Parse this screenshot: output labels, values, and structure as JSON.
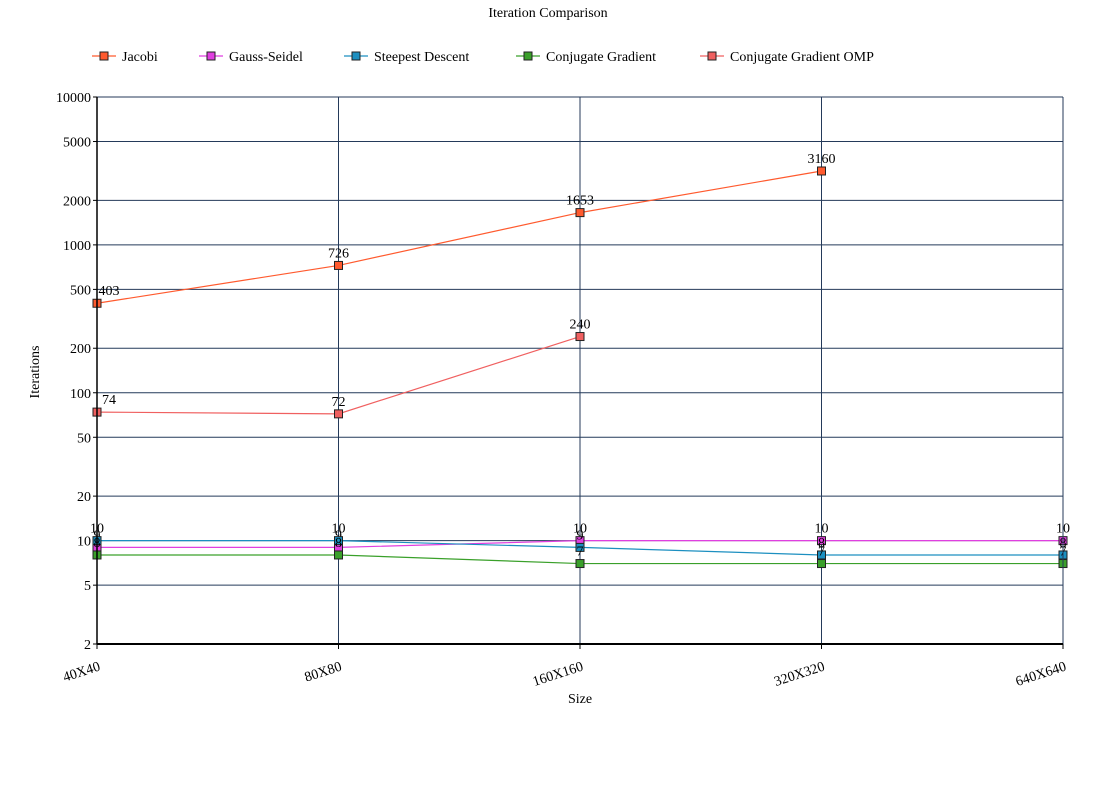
{
  "chart_data": {
    "type": "line",
    "title": "Iteration Comparison",
    "xlabel": "Size",
    "ylabel": "Iterations",
    "yscale": "log",
    "ylim": [
      2,
      10000
    ],
    "yticks": [
      2,
      5,
      10,
      20,
      50,
      100,
      200,
      500,
      1000,
      2000,
      5000,
      10000
    ],
    "categories": [
      "40X40",
      "80X80",
      "160X160",
      "320X320",
      "640X640"
    ],
    "grid": true,
    "legend_position": "top-left",
    "series": [
      {
        "name": "Jacobi",
        "color": "#ff5a2e",
        "values": [
          403,
          726,
          1653,
          3160,
          null
        ],
        "labels": [
          "403",
          "726",
          "1653",
          "3160",
          ""
        ]
      },
      {
        "name": "Gauss-Seidel",
        "color": "#e03fe0",
        "values": [
          9,
          9,
          10,
          10,
          10
        ],
        "labels": [
          "9",
          "9",
          "10",
          "10",
          "10"
        ]
      },
      {
        "name": "Steepest Descent",
        "color": "#1c8fc0",
        "values": [
          10,
          10,
          9,
          8,
          8
        ],
        "labels": [
          "10",
          "10",
          "9",
          "8",
          "8"
        ]
      },
      {
        "name": "Conjugate Gradient",
        "color": "#3aa02a",
        "values": [
          8,
          8,
          7,
          7,
          7
        ],
        "labels": [
          "8",
          "8",
          "7",
          "7",
          "7"
        ]
      },
      {
        "name": "Conjugate Gradient OMP",
        "color": "#f06060",
        "values": [
          74,
          72,
          240,
          null,
          null
        ],
        "labels": [
          "74",
          "72",
          "240",
          "",
          ""
        ]
      }
    ]
  }
}
